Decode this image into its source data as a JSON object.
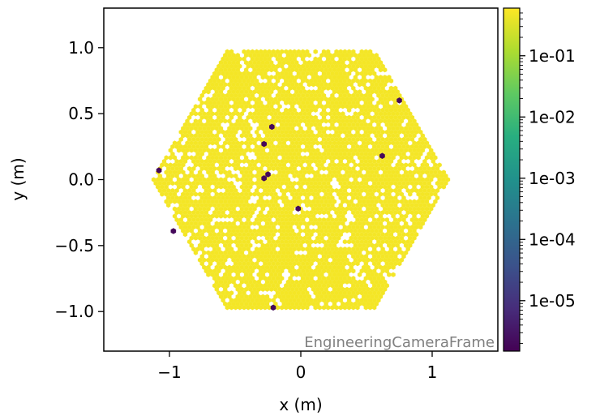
{
  "chart_data": {
    "type": "heatmap",
    "subtype": "hexagonal camera pixel display",
    "xlabel": "x  (m)",
    "ylabel": "y  (m)",
    "xlim": [
      -1.5,
      1.5
    ],
    "ylim": [
      -1.3,
      1.3
    ],
    "x_ticks": [
      -1,
      0,
      1
    ],
    "x_tick_labels": [
      "−1",
      "0",
      "1"
    ],
    "y_ticks": [
      -1.0,
      -0.5,
      0.0,
      0.5,
      1.0
    ],
    "y_tick_labels": [
      "−1.0",
      "−0.5",
      "0.0",
      "0.5",
      "1.0"
    ],
    "frame_label": "EngineeringCameraFrame",
    "colormap": "viridis",
    "color_scale": "log",
    "colorbar_ticks": [
      0.1,
      0.01,
      0.001,
      0.0001,
      1e-05
    ],
    "colorbar_tick_labels": [
      "1e-01",
      "1e-02",
      "1e-03",
      "1e-04",
      "1e-05"
    ],
    "colorbar_range": [
      1.5e-06,
      0.6
    ],
    "camera_radius": 1.15,
    "pixel_pitch": 0.032,
    "background_value": 0.5,
    "low_pixels": [
      {
        "x": -0.22,
        "y": 0.4,
        "value": 2e-06
      },
      {
        "x": -0.28,
        "y": 0.27,
        "value": 2e-06
      },
      {
        "x": -0.25,
        "y": 0.04,
        "value": 2e-06
      },
      {
        "x": -0.28,
        "y": 0.01,
        "value": 2e-06
      },
      {
        "x": -0.02,
        "y": -0.22,
        "value": 2e-06
      },
      {
        "x": -1.08,
        "y": 0.07,
        "value": 2e-06
      },
      {
        "x": -0.97,
        "y": -0.39,
        "value": 2e-06
      },
      {
        "x": 0.62,
        "y": 0.18,
        "value": 2e-06
      },
      {
        "x": 0.75,
        "y": 0.6,
        "value": 2e-06
      },
      {
        "x": -0.21,
        "y": -0.97,
        "value": 2e-06
      }
    ]
  }
}
